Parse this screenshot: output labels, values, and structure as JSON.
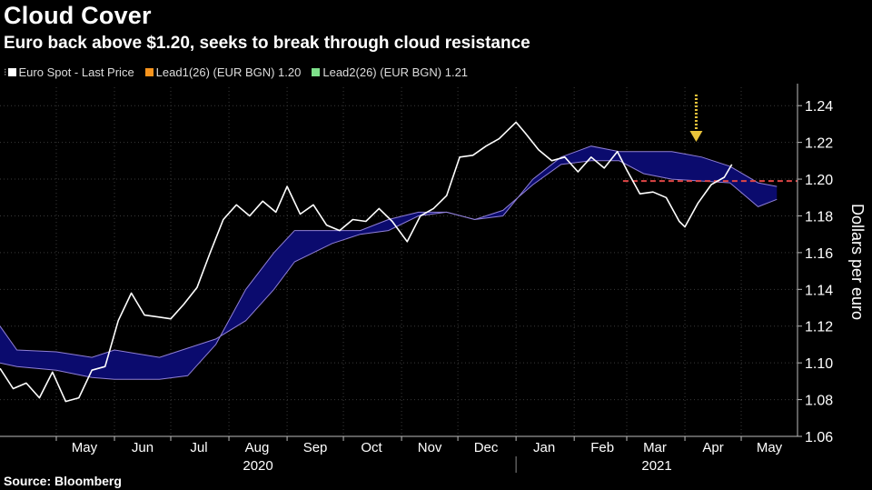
{
  "title": "Cloud Cover",
  "subtitle": "Euro back above $1.20, seeks to break through cloud resistance",
  "legend": [
    {
      "label": "Euro Spot - Last Price",
      "color": "#ffffff"
    },
    {
      "label": "Lead1(26) (EUR BGN) 1.20",
      "color": "#f7941d"
    },
    {
      "label": "Lead2(26) (EUR BGN) 1.21",
      "color": "#7ee08a"
    }
  ],
  "source": "Source: Bloomberg",
  "chart_data": {
    "type": "line",
    "ylabel": "Dollars per euro",
    "ylim": [
      1.06,
      1.25
    ],
    "yticks": [
      "1.06",
      "1.08",
      "1.10",
      "1.12",
      "1.14",
      "1.16",
      "1.18",
      "1.20",
      "1.22",
      "1.24"
    ],
    "month_labels": [
      "May",
      "Jun",
      "Jul",
      "Aug",
      "Sep",
      "Oct",
      "Nov",
      "Dec",
      "Jan",
      "Feb",
      "Mar",
      "Apr",
      "May"
    ],
    "year_labels": [
      "2020",
      "2021"
    ],
    "x_range": [
      "2020-04-01",
      "2021-05-31"
    ],
    "reference_line": {
      "value": 1.199,
      "color": "#e04646",
      "style": "dashed"
    },
    "annotation_arrow": {
      "date": "2021-04-07",
      "color": "#e8c33a"
    },
    "cloud_color": "#0b0b6e",
    "series": [
      {
        "name": "Euro Spot - Last Price",
        "color": "#ffffff",
        "points": [
          [
            "2020-04-01",
            1.097
          ],
          [
            "2020-04-08",
            1.086
          ],
          [
            "2020-04-15",
            1.089
          ],
          [
            "2020-04-22",
            1.081
          ],
          [
            "2020-04-29",
            1.095
          ],
          [
            "2020-05-06",
            1.079
          ],
          [
            "2020-05-13",
            1.081
          ],
          [
            "2020-05-20",
            1.096
          ],
          [
            "2020-05-27",
            1.098
          ],
          [
            "2020-06-03",
            1.123
          ],
          [
            "2020-06-10",
            1.138
          ],
          [
            "2020-06-17",
            1.126
          ],
          [
            "2020-06-24",
            1.125
          ],
          [
            "2020-07-01",
            1.124
          ],
          [
            "2020-07-08",
            1.132
          ],
          [
            "2020-07-15",
            1.141
          ],
          [
            "2020-07-22",
            1.16
          ],
          [
            "2020-07-29",
            1.178
          ],
          [
            "2020-08-05",
            1.186
          ],
          [
            "2020-08-12",
            1.18
          ],
          [
            "2020-08-19",
            1.188
          ],
          [
            "2020-08-26",
            1.182
          ],
          [
            "2020-09-01",
            1.196
          ],
          [
            "2020-09-08",
            1.181
          ],
          [
            "2020-09-15",
            1.186
          ],
          [
            "2020-09-22",
            1.175
          ],
          [
            "2020-09-29",
            1.172
          ],
          [
            "2020-10-06",
            1.178
          ],
          [
            "2020-10-13",
            1.177
          ],
          [
            "2020-10-20",
            1.184
          ],
          [
            "2020-10-27",
            1.177
          ],
          [
            "2020-11-04",
            1.166
          ],
          [
            "2020-11-11",
            1.18
          ],
          [
            "2020-11-18",
            1.184
          ],
          [
            "2020-11-25",
            1.191
          ],
          [
            "2020-12-02",
            1.212
          ],
          [
            "2020-12-09",
            1.213
          ],
          [
            "2020-12-16",
            1.218
          ],
          [
            "2020-12-23",
            1.222
          ],
          [
            "2021-01-01",
            1.231
          ],
          [
            "2021-01-06",
            1.225
          ],
          [
            "2021-01-13",
            1.216
          ],
          [
            "2021-01-20",
            1.21
          ],
          [
            "2021-01-27",
            1.212
          ],
          [
            "2021-02-03",
            1.204
          ],
          [
            "2021-02-10",
            1.212
          ],
          [
            "2021-02-17",
            1.206
          ],
          [
            "2021-02-24",
            1.215
          ],
          [
            "2021-03-01",
            1.205
          ],
          [
            "2021-03-08",
            1.192
          ],
          [
            "2021-03-15",
            1.193
          ],
          [
            "2021-03-22",
            1.19
          ],
          [
            "2021-03-29",
            1.177
          ],
          [
            "2021-04-01",
            1.174
          ],
          [
            "2021-04-08",
            1.187
          ],
          [
            "2021-04-15",
            1.197
          ],
          [
            "2021-04-22",
            1.201
          ],
          [
            "2021-04-26",
            1.208
          ]
        ]
      },
      {
        "name": "Lead1(26) (EUR BGN) 1.20",
        "color": "#f7941d",
        "points": [
          [
            "2020-04-01",
            1.12
          ],
          [
            "2020-04-10",
            1.107
          ],
          [
            "2020-05-01",
            1.106
          ],
          [
            "2020-05-20",
            1.103
          ],
          [
            "2020-06-01",
            1.107
          ],
          [
            "2020-06-25",
            1.103
          ],
          [
            "2020-07-10",
            1.108
          ],
          [
            "2020-07-25",
            1.113
          ],
          [
            "2020-08-10",
            1.123
          ],
          [
            "2020-08-25",
            1.14
          ],
          [
            "2020-09-05",
            1.155
          ],
          [
            "2020-09-25",
            1.165
          ],
          [
            "2020-10-10",
            1.17
          ],
          [
            "2020-10-25",
            1.172
          ],
          [
            "2020-11-10",
            1.18
          ],
          [
            "2020-11-25",
            1.182
          ],
          [
            "2020-12-10",
            1.178
          ],
          [
            "2020-12-25",
            1.183
          ],
          [
            "2021-01-10",
            1.197
          ],
          [
            "2021-01-25",
            1.208
          ],
          [
            "2021-02-10",
            1.21
          ],
          [
            "2021-02-25",
            1.21
          ],
          [
            "2021-03-10",
            1.203
          ],
          [
            "2021-03-25",
            1.2
          ],
          [
            "2021-04-10",
            1.199
          ],
          [
            "2021-04-25",
            1.198
          ],
          [
            "2021-05-10",
            1.185
          ],
          [
            "2021-05-20",
            1.189
          ]
        ]
      },
      {
        "name": "Lead2(26) (EUR BGN) 1.21",
        "color": "#7ee08a",
        "points": [
          [
            "2020-04-01",
            1.1
          ],
          [
            "2020-04-10",
            1.098
          ],
          [
            "2020-05-01",
            1.096
          ],
          [
            "2020-05-20",
            1.092
          ],
          [
            "2020-06-01",
            1.091
          ],
          [
            "2020-06-25",
            1.091
          ],
          [
            "2020-07-10",
            1.093
          ],
          [
            "2020-07-25",
            1.11
          ],
          [
            "2020-08-10",
            1.14
          ],
          [
            "2020-08-25",
            1.16
          ],
          [
            "2020-09-05",
            1.172
          ],
          [
            "2020-09-25",
            1.172
          ],
          [
            "2020-10-10",
            1.172
          ],
          [
            "2020-10-25",
            1.178
          ],
          [
            "2020-11-10",
            1.182
          ],
          [
            "2020-11-25",
            1.182
          ],
          [
            "2020-12-10",
            1.178
          ],
          [
            "2020-12-25",
            1.18
          ],
          [
            "2021-01-10",
            1.2
          ],
          [
            "2021-01-25",
            1.212
          ],
          [
            "2021-02-10",
            1.218
          ],
          [
            "2021-02-25",
            1.215
          ],
          [
            "2021-03-10",
            1.215
          ],
          [
            "2021-03-25",
            1.215
          ],
          [
            "2021-04-10",
            1.212
          ],
          [
            "2021-04-25",
            1.207
          ],
          [
            "2021-05-10",
            1.198
          ],
          [
            "2021-05-20",
            1.196
          ]
        ]
      }
    ]
  }
}
